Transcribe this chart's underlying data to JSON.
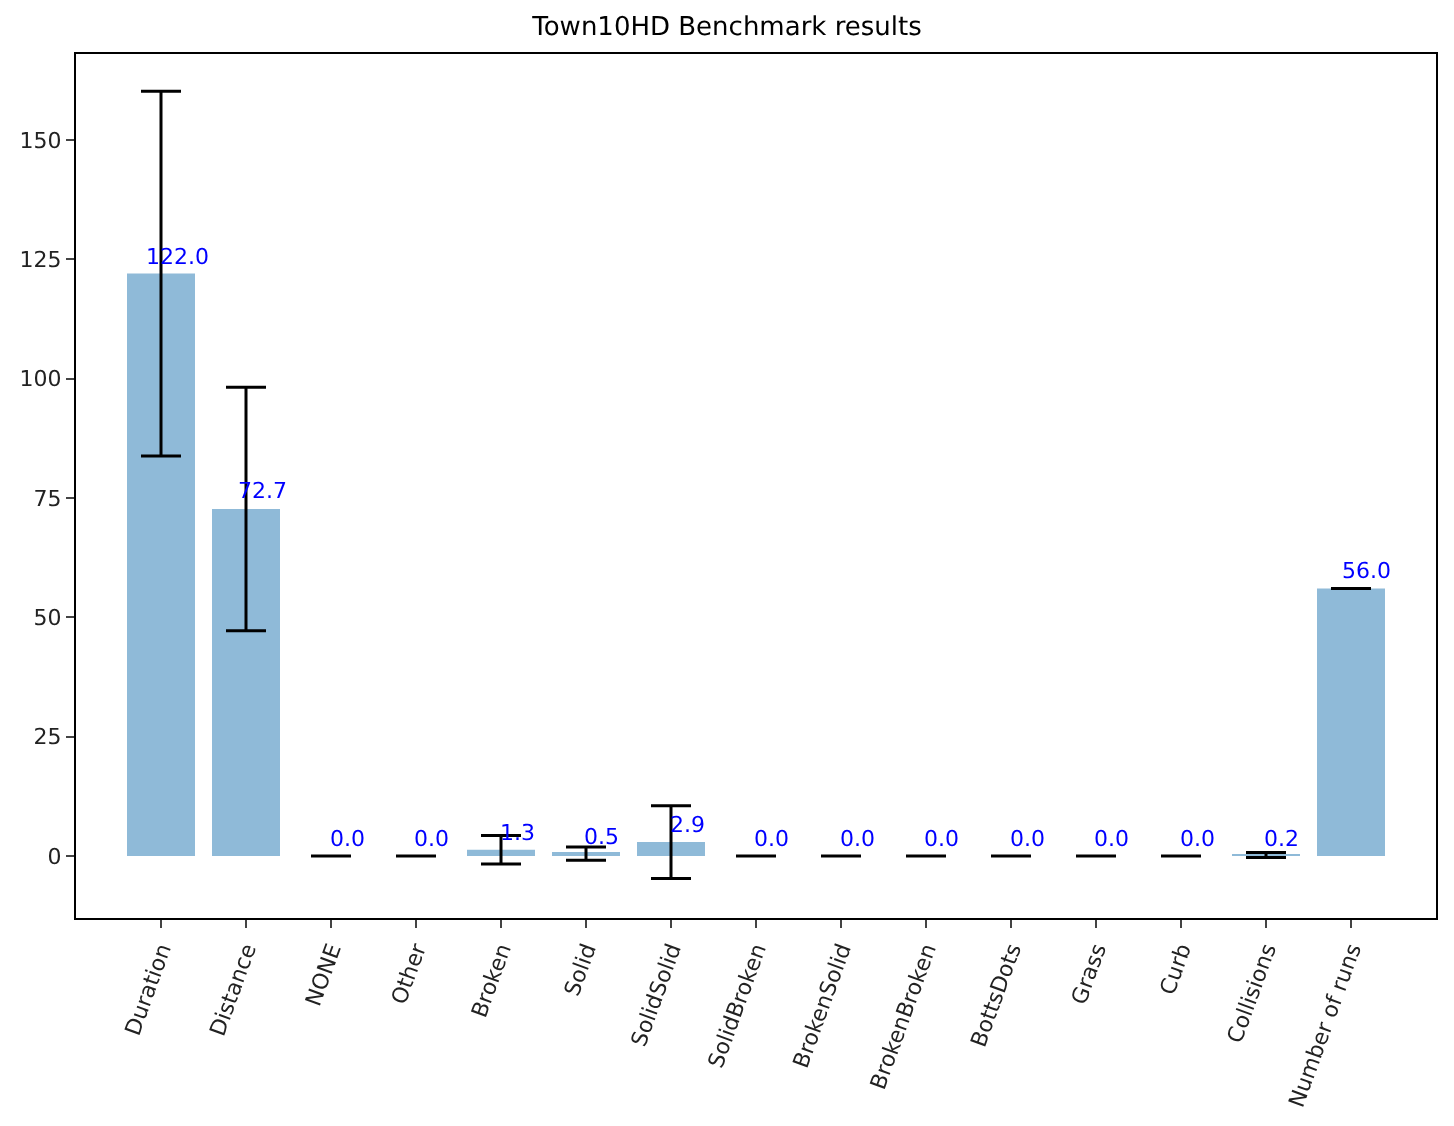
{
  "chart_data": {
    "type": "bar",
    "title": "Town10HD Benchmark results",
    "categories": [
      "Duration",
      "Distance",
      "NONE",
      "Other",
      "Broken",
      "Solid",
      "SolidSolid",
      "SolidBroken",
      "BrokenSolid",
      "BrokenBroken",
      "BottsDots",
      "Grass",
      "Curb",
      "Collisions",
      "Number of runs"
    ],
    "values": [
      122.0,
      72.7,
      0.0,
      0.0,
      1.3,
      0.5,
      2.9,
      0.0,
      0.0,
      0.0,
      0.0,
      0.0,
      0.0,
      0.2,
      56.0
    ],
    "value_labels": [
      "122.0",
      "72.7",
      "0.0",
      "0.0",
      "1.3",
      "0.5",
      "2.9",
      "0.0",
      "0.0",
      "0.0",
      "0.0",
      "0.0",
      "0.0",
      "0.2",
      "56.0"
    ],
    "errors": [
      38.2,
      25.5,
      0,
      0,
      3.0,
      1.4,
      7.6,
      0,
      0,
      0,
      0,
      0,
      0,
      0.5,
      0
    ],
    "color": "#8fbad8",
    "ylim": [
      -13,
      168
    ],
    "yticks": [
      0,
      25,
      50,
      75,
      100,
      125,
      150
    ],
    "grid": false
  }
}
